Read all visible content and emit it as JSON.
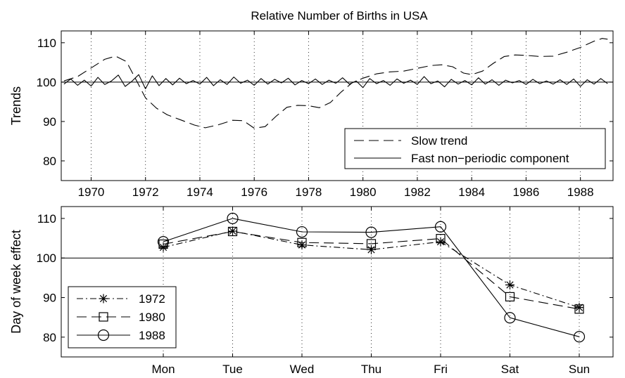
{
  "figure": {
    "title": "Relative Number of Births in USA"
  },
  "chart_data": [
    {
      "type": "line",
      "title": "Relative Number of Births in USA",
      "xlabel": "",
      "ylabel": "Trends",
      "xlim": [
        1968.9,
        1989.2
      ],
      "ylim": [
        75,
        113
      ],
      "x_ticks": [
        "1970",
        "1972",
        "1974",
        "1976",
        "1978",
        "1980",
        "1982",
        "1984",
        "1986",
        "1988"
      ],
      "y_ticks": [
        "80",
        "90",
        "100",
        "110"
      ],
      "grid": "vertical dotted",
      "reference_line": 100,
      "legend_position": "bottom-right",
      "series": [
        {
          "name": "Slow trend",
          "style": "dashed",
          "x": [
            1969.0,
            1969.5,
            1970.0,
            1970.5,
            1970.9,
            1971.3,
            1971.7,
            1972.0,
            1972.4,
            1972.8,
            1973.3,
            1973.8,
            1974.2,
            1974.7,
            1975.2,
            1975.6,
            1976.0,
            1976.4,
            1976.8,
            1977.2,
            1977.6,
            1978.0,
            1978.4,
            1978.8,
            1979.2,
            1979.6,
            1980.0,
            1980.5,
            1981.0,
            1981.5,
            1982.0,
            1982.5,
            1982.9,
            1983.3,
            1983.7,
            1984.0,
            1984.4,
            1984.8,
            1985.2,
            1985.6,
            1986.0,
            1986.5,
            1987.0,
            1987.5,
            1988.0,
            1988.5,
            1988.8,
            1989.0
          ],
          "values": [
            100.3,
            101.4,
            103.6,
            105.8,
            106.6,
            105.2,
            100.0,
            96.0,
            93.4,
            91.7,
            90.4,
            89.1,
            88.4,
            89.2,
            90.3,
            90.2,
            88.3,
            88.7,
            91.3,
            93.6,
            94.1,
            94.0,
            93.5,
            94.8,
            97.5,
            99.8,
            101.0,
            102.1,
            102.6,
            102.8,
            103.5,
            104.2,
            104.4,
            103.9,
            102.3,
            101.9,
            102.8,
            104.8,
            106.5,
            106.9,
            106.8,
            106.5,
            106.6,
            107.6,
            108.8,
            110.4,
            111.1,
            110.9
          ]
        },
        {
          "name": "Fast non−periodic component",
          "style": "solid",
          "x": [
            1969.0,
            1969.25,
            1969.5,
            1969.75,
            1970.0,
            1970.25,
            1970.5,
            1970.75,
            1971.0,
            1971.25,
            1971.5,
            1971.75,
            1972.0,
            1972.25,
            1972.5,
            1972.75,
            1973.0,
            1973.25,
            1973.5,
            1973.75,
            1974.0,
            1974.25,
            1974.5,
            1974.75,
            1975.0,
            1975.25,
            1975.5,
            1975.75,
            1976.0,
            1976.25,
            1976.5,
            1976.75,
            1977.0,
            1977.25,
            1977.5,
            1977.75,
            1978.0,
            1978.25,
            1978.5,
            1978.75,
            1979.0,
            1979.25,
            1979.5,
            1979.75,
            1980.0,
            1980.25,
            1980.5,
            1980.75,
            1981.0,
            1981.25,
            1981.5,
            1981.75,
            1982.0,
            1982.25,
            1982.5,
            1982.75,
            1983.0,
            1983.25,
            1983.5,
            1983.75,
            1984.0,
            1984.25,
            1984.5,
            1984.75,
            1985.0,
            1985.25,
            1985.5,
            1985.75,
            1986.0,
            1986.25,
            1986.5,
            1986.75,
            1987.0,
            1987.25,
            1987.5,
            1987.75,
            1988.0,
            1988.25,
            1988.5,
            1988.75,
            1989.0
          ],
          "values": [
            99.5,
            100.8,
            99.2,
            100.5,
            99.0,
            101.2,
            99.4,
            100.3,
            101.8,
            98.9,
            100.2,
            101.9,
            98.3,
            101.6,
            99.1,
            100.9,
            99.3,
            101.0,
            99.6,
            100.4,
            99.5,
            101.2,
            99.1,
            100.6,
            99.4,
            101.3,
            99.7,
            100.5,
            99.2,
            100.9,
            99.5,
            100.7,
            99.8,
            101.0,
            99.3,
            100.4,
            99.6,
            100.8,
            99.4,
            100.5,
            99.7,
            101.1,
            99.5,
            100.3,
            98.6,
            100.9,
            99.6,
            100.4,
            99.2,
            100.8,
            99.7,
            100.5,
            99.4,
            101.4,
            99.6,
            100.3,
            98.8,
            100.7,
            99.5,
            100.4,
            99.3,
            101.1,
            99.5,
            100.6,
            99.2,
            100.5,
            99.8,
            100.4,
            99.4,
            100.7,
            99.6,
            100.3,
            99.5,
            100.6,
            99.4,
            100.8,
            98.9,
            100.6,
            99.5,
            100.9,
            99.6
          ]
        }
      ]
    },
    {
      "type": "line",
      "title": "",
      "xlabel": "",
      "ylabel": "Day of week effect",
      "ylim": [
        75,
        113
      ],
      "categories": [
        "Mon",
        "Tue",
        "Wed",
        "Thu",
        "Fri",
        "Sat",
        "Sun"
      ],
      "y_ticks": [
        "80",
        "90",
        "100",
        "110"
      ],
      "grid": "vertical dotted",
      "reference_line": 100,
      "legend_position": "bottom-left",
      "series": [
        {
          "name": "1972",
          "style": "dash-dot",
          "marker": "asterisk",
          "values": [
            102.7,
            106.8,
            103.3,
            102.1,
            104.1,
            93.2,
            87.5
          ]
        },
        {
          "name": "1980",
          "style": "dashed",
          "marker": "square",
          "values": [
            103.5,
            106.7,
            103.9,
            103.6,
            104.9,
            90.2,
            87.1
          ]
        },
        {
          "name": "1988",
          "style": "solid",
          "marker": "circle",
          "values": [
            104.1,
            110.0,
            106.6,
            106.5,
            107.9,
            84.9,
            80.1
          ]
        }
      ]
    }
  ]
}
